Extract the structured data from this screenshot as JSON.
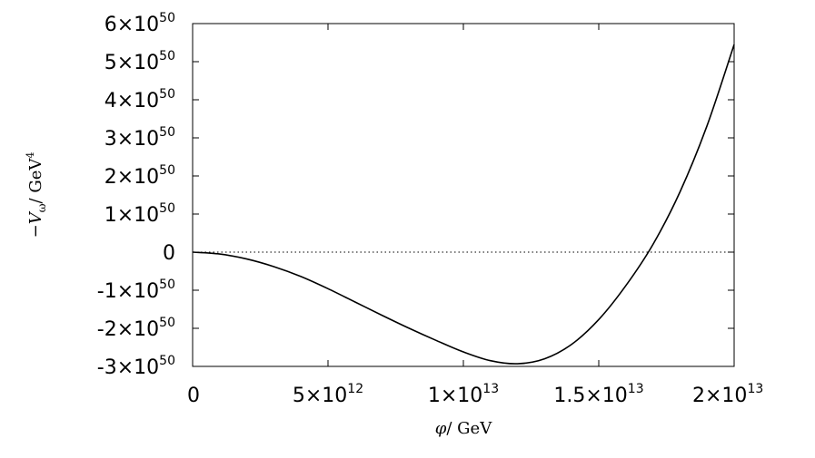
{
  "chart_data": {
    "type": "line",
    "xlabel": {
      "symbol": "φ",
      "unit": "/ GeV"
    },
    "ylabel": {
      "prefix": "−",
      "symbol": "V",
      "subscript": "ω",
      "unit": "/ GeV",
      "superscript": "4"
    },
    "xlim": [
      0,
      20000000000000.0
    ],
    "ylim": [
      -3e+50,
      6e+50
    ],
    "x_ticks": [
      {
        "value": 0,
        "mantissa": "0",
        "exp": ""
      },
      {
        "value": 5000000000000.0,
        "mantissa": "5×10",
        "exp": "12"
      },
      {
        "value": 10000000000000.0,
        "mantissa": "1×10",
        "exp": "13"
      },
      {
        "value": 15000000000000.0,
        "mantissa": "1.5×10",
        "exp": "13"
      },
      {
        "value": 20000000000000.0,
        "mantissa": "2×10",
        "exp": "13"
      }
    ],
    "y_ticks": [
      {
        "value": 6e+50,
        "mantissa": "6×10",
        "exp": "50"
      },
      {
        "value": 5e+50,
        "mantissa": "5×10",
        "exp": "50"
      },
      {
        "value": 4e+50,
        "mantissa": "4×10",
        "exp": "50"
      },
      {
        "value": 3e+50,
        "mantissa": "3×10",
        "exp": "50"
      },
      {
        "value": 2e+50,
        "mantissa": "2×10",
        "exp": "50"
      },
      {
        "value": 1e+50,
        "mantissa": "1×10",
        "exp": "50"
      },
      {
        "value": 0,
        "mantissa": "0",
        "exp": ""
      },
      {
        "value": -1e+50,
        "mantissa": "-1×10",
        "exp": "50"
      },
      {
        "value": -2e+50,
        "mantissa": "-2×10",
        "exp": "50"
      },
      {
        "value": -3e+50,
        "mantissa": "-3×10",
        "exp": "50"
      }
    ],
    "zero_reference_line": {
      "y": 0,
      "style": "dotted"
    },
    "grid": false,
    "series": [
      {
        "color": "#000000",
        "x": [
          0,
          1000000000000.0,
          2000000000000.0,
          3000000000000.0,
          4000000000000.0,
          5000000000000.0,
          6000000000000.0,
          7000000000000.0,
          8000000000000.0,
          9000000000000.0,
          10000000000000.0,
          11000000000000.0,
          12000000000000.0,
          13000000000000.0,
          14000000000000.0,
          15000000000000.0,
          16000000000000.0,
          17000000000000.0,
          18000000000000.0,
          19000000000000.0,
          20000000000000.0
        ],
        "y": [
          0,
          -5e+48,
          -1.8e+49,
          -3.8e+49,
          -6.4e+49,
          -9.6e+49,
          -1.31e+50,
          -1.66e+50,
          -2e+50,
          -2.32e+50,
          -2.62e+50,
          -2.85e+50,
          -2.93e+50,
          -2.8e+50,
          -2.42e+50,
          -1.77e+50,
          -8.8e+49,
          2e+49,
          1.58e+50,
          3.32e+50,
          5.45e+50
        ]
      }
    ]
  }
}
